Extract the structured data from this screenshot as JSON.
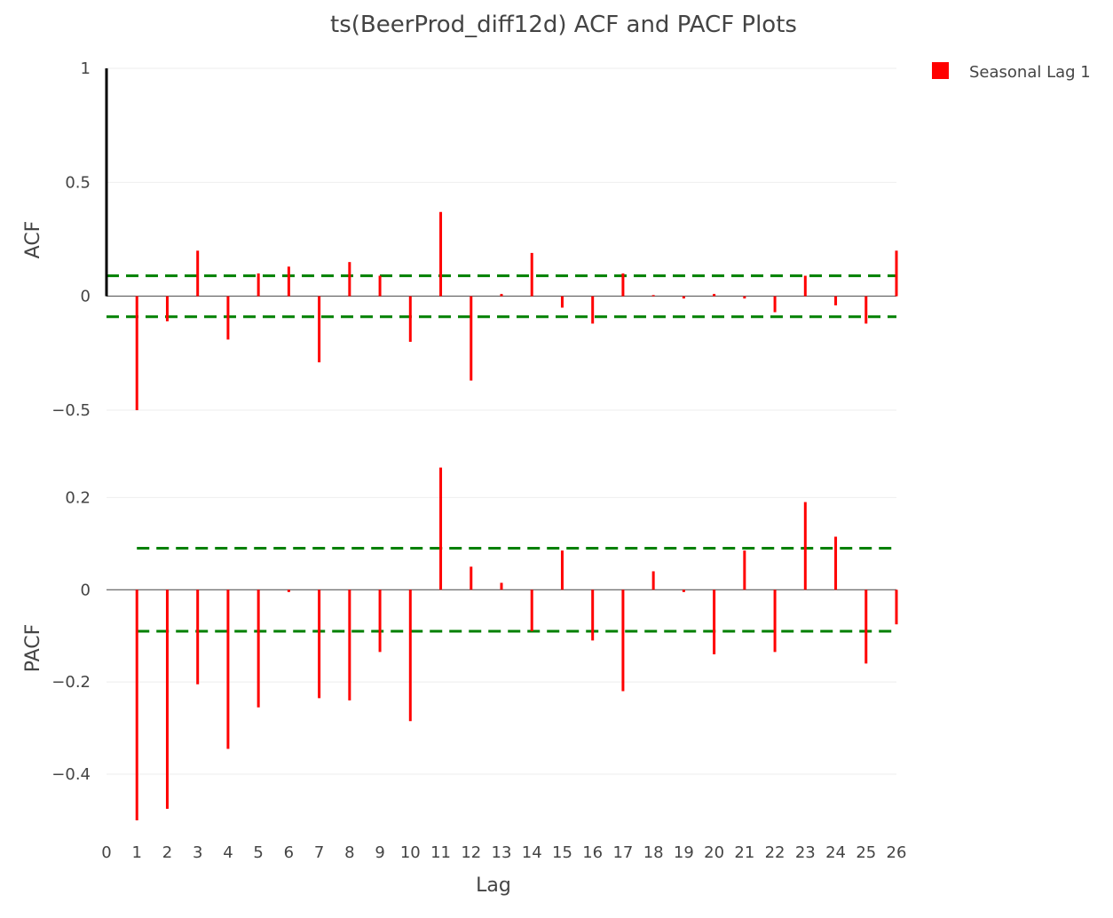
{
  "chart_data": {
    "type": "stem",
    "title": "ts(BeerProd_diff12d) ACF and PACF Plots",
    "xlabel": "Lag",
    "x_ticks": [
      0,
      1,
      2,
      3,
      4,
      5,
      6,
      7,
      8,
      9,
      10,
      11,
      12,
      13,
      14,
      15,
      16,
      17,
      18,
      19,
      20,
      21,
      22,
      23,
      24,
      25,
      26
    ],
    "xlim": [
      0,
      26
    ],
    "legend": {
      "position": "top-right",
      "entries": [
        {
          "label": "Seasonal Lag 1",
          "color": "#ff0000"
        }
      ]
    },
    "colors": {
      "stem": "#ff0000",
      "lag0_stem": "#000000",
      "confidence": "#008000",
      "grid": "#eeeeee",
      "zero_line": "#444444"
    },
    "panels": [
      {
        "name": "acf",
        "ylabel": "ACF",
        "ylim": [
          -0.5,
          1
        ],
        "y_ticks": [
          1,
          0.5,
          0,
          -0.5
        ],
        "y_tick_labels": [
          "1",
          "0.5",
          "0",
          "−0.5"
        ],
        "confidence_band": [
          -0.09,
          0.09
        ],
        "lags": [
          0,
          1,
          2,
          3,
          4,
          5,
          6,
          7,
          8,
          9,
          10,
          11,
          12,
          13,
          14,
          15,
          16,
          17,
          18,
          19,
          20,
          21,
          22,
          23,
          24,
          25,
          26
        ],
        "values": [
          1.0,
          -0.5,
          -0.11,
          0.2,
          -0.19,
          0.1,
          0.13,
          -0.29,
          0.15,
          0.09,
          -0.2,
          0.37,
          -0.37,
          0.01,
          0.19,
          -0.05,
          -0.12,
          0.1,
          0.005,
          -0.01,
          0.01,
          -0.01,
          -0.07,
          0.09,
          -0.04,
          -0.12,
          0.2
        ]
      },
      {
        "name": "pacf",
        "ylabel": "PACF",
        "ylim": [
          -0.5,
          0.27
        ],
        "y_ticks": [
          0.2,
          0,
          -0.2,
          -0.4
        ],
        "y_tick_labels": [
          "0.2",
          "0",
          "−0.2",
          "−0.4"
        ],
        "confidence_band": [
          -0.09,
          0.09
        ],
        "lags": [
          1,
          2,
          3,
          4,
          5,
          6,
          7,
          8,
          9,
          10,
          11,
          12,
          13,
          14,
          15,
          16,
          17,
          18,
          19,
          20,
          21,
          22,
          23,
          24,
          25,
          26
        ],
        "values": [
          -0.5,
          -0.475,
          -0.205,
          -0.345,
          -0.255,
          -0.005,
          -0.235,
          -0.24,
          -0.135,
          -0.285,
          0.265,
          0.05,
          0.015,
          -0.09,
          0.085,
          -0.11,
          -0.22,
          0.04,
          -0.005,
          -0.14,
          0.085,
          -0.135,
          0.19,
          0.115,
          -0.16,
          -0.075
        ]
      }
    ]
  }
}
